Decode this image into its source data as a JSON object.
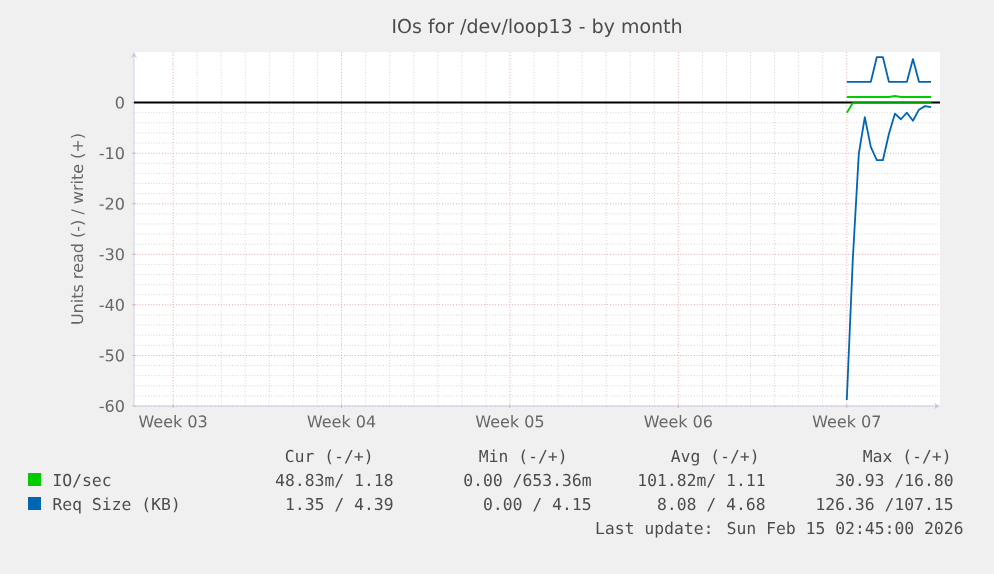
{
  "chart_data": {
    "type": "line",
    "title": "IOs for /dev/loop13 - by month",
    "ylabel": "Units read (-) / write (+)",
    "categories": [
      null,
      null,
      null,
      null,
      null,
      null,
      "Week 03",
      null,
      null,
      null,
      null,
      null,
      null,
      null,
      null,
      null,
      null,
      null,
      null,
      null,
      null,
      null,
      null,
      null,
      null,
      null,
      null,
      null,
      null,
      null,
      null,
      null,
      null,
      null,
      "Week 04",
      null,
      null,
      null,
      null,
      null,
      null,
      null,
      null,
      null,
      null,
      null,
      null,
      null,
      null,
      null,
      null,
      null,
      null,
      null,
      null,
      null,
      null,
      null,
      null,
      null,
      null,
      null,
      "Week 05",
      null,
      null,
      null,
      null,
      null,
      null,
      null,
      null,
      null,
      null,
      null,
      null,
      null,
      null,
      null,
      null,
      null,
      null,
      null,
      null,
      null,
      null,
      null,
      null,
      null,
      null,
      null,
      "Week 06",
      null,
      null,
      null,
      null,
      null,
      null,
      null,
      null,
      null,
      null,
      null,
      null,
      null,
      null,
      null,
      null,
      null,
      null,
      null,
      null,
      null,
      null,
      null,
      null,
      null,
      null,
      null,
      "Week 07",
      null,
      null,
      null,
      null,
      null,
      null,
      null,
      null,
      null,
      null,
      null,
      null,
      null,
      null,
      null
    ],
    "ylim": [
      -60,
      10
    ],
    "yticks": [
      -60,
      -50,
      -40,
      -30,
      -20,
      -10,
      0
    ],
    "grid": true,
    "legend": "bottom",
    "ref_lines": [
      {
        "axis": "y",
        "value": 0,
        "color": "#000000"
      }
    ],
    "series": [
      {
        "name": "IO/sec",
        "color": "#00cc00",
        "values": [
          null,
          null,
          null,
          null,
          null,
          null,
          null,
          null,
          null,
          null,
          null,
          null,
          null,
          null,
          null,
          null,
          null,
          null,
          null,
          null,
          null,
          null,
          null,
          null,
          null,
          null,
          null,
          null,
          null,
          null,
          null,
          null,
          null,
          null,
          null,
          null,
          null,
          null,
          null,
          null,
          null,
          null,
          null,
          null,
          null,
          null,
          null,
          null,
          null,
          null,
          null,
          null,
          null,
          null,
          null,
          null,
          null,
          null,
          null,
          null,
          null,
          null,
          null,
          null,
          null,
          null,
          null,
          null,
          null,
          null,
          null,
          null,
          null,
          null,
          null,
          null,
          null,
          null,
          null,
          null,
          null,
          null,
          null,
          null,
          null,
          null,
          null,
          null,
          null,
          null,
          null,
          null,
          null,
          null,
          null,
          null,
          null,
          null,
          null,
          null,
          null,
          null,
          null,
          null,
          null,
          null,
          null,
          null,
          null,
          null,
          null,
          null,
          null,
          null,
          null,
          null,
          null,
          null,
          1.1,
          1.1,
          1.1,
          1.1,
          1.1,
          1.1,
          1.1,
          1.1,
          1.3,
          1.1,
          1.1,
          1.1,
          1.1,
          1.1,
          1.1,
          null
        ]
      },
      {
        "color": "#00cc00",
        "values": [
          null,
          null,
          null,
          null,
          null,
          null,
          null,
          null,
          null,
          null,
          null,
          null,
          null,
          null,
          null,
          null,
          null,
          null,
          null,
          null,
          null,
          null,
          null,
          null,
          null,
          null,
          null,
          null,
          null,
          null,
          null,
          null,
          null,
          null,
          null,
          null,
          null,
          null,
          null,
          null,
          null,
          null,
          null,
          null,
          null,
          null,
          null,
          null,
          null,
          null,
          null,
          null,
          null,
          null,
          null,
          null,
          null,
          null,
          null,
          null,
          null,
          null,
          null,
          null,
          null,
          null,
          null,
          null,
          null,
          null,
          null,
          null,
          null,
          null,
          null,
          null,
          null,
          null,
          null,
          null,
          null,
          null,
          null,
          null,
          null,
          null,
          null,
          null,
          null,
          null,
          null,
          null,
          null,
          null,
          null,
          null,
          null,
          null,
          null,
          null,
          null,
          null,
          null,
          null,
          null,
          null,
          null,
          null,
          null,
          null,
          null,
          null,
          null,
          null,
          null,
          null,
          null,
          null,
          -2.0,
          -0.1,
          -0.1,
          -0.1,
          -0.1,
          -0.1,
          -0.1,
          -0.1,
          -0.1,
          -0.1,
          -0.1,
          -0.1,
          -0.1,
          -0.1,
          -0.1,
          null
        ]
      },
      {
        "name": "Req Size (KB)",
        "color": "#0066b3",
        "values": [
          null,
          null,
          null,
          null,
          null,
          null,
          null,
          null,
          null,
          null,
          null,
          null,
          null,
          null,
          null,
          null,
          null,
          null,
          null,
          null,
          null,
          null,
          null,
          null,
          null,
          null,
          null,
          null,
          null,
          null,
          null,
          null,
          null,
          null,
          null,
          null,
          null,
          null,
          null,
          null,
          null,
          null,
          null,
          null,
          null,
          null,
          null,
          null,
          null,
          null,
          null,
          null,
          null,
          null,
          null,
          null,
          null,
          null,
          null,
          null,
          null,
          null,
          null,
          null,
          null,
          null,
          null,
          null,
          null,
          null,
          null,
          null,
          null,
          null,
          null,
          null,
          null,
          null,
          null,
          null,
          null,
          null,
          null,
          null,
          null,
          null,
          null,
          null,
          null,
          null,
          null,
          null,
          null,
          null,
          null,
          null,
          null,
          null,
          null,
          null,
          null,
          null,
          null,
          null,
          null,
          null,
          null,
          null,
          null,
          null,
          null,
          null,
          null,
          null,
          null,
          null,
          null,
          null,
          4.1,
          4.1,
          4.1,
          4.1,
          4.1,
          9.0,
          9.0,
          4.1,
          4.1,
          4.1,
          4.1,
          8.6,
          4.1,
          4.1,
          4.1,
          null
        ]
      },
      {
        "color": "#0066b3",
        "values": [
          null,
          null,
          null,
          null,
          null,
          null,
          null,
          null,
          null,
          null,
          null,
          null,
          null,
          null,
          null,
          null,
          null,
          null,
          null,
          null,
          null,
          null,
          null,
          null,
          null,
          null,
          null,
          null,
          null,
          null,
          null,
          null,
          null,
          null,
          null,
          null,
          null,
          null,
          null,
          null,
          null,
          null,
          null,
          null,
          null,
          null,
          null,
          null,
          null,
          null,
          null,
          null,
          null,
          null,
          null,
          null,
          null,
          null,
          null,
          null,
          null,
          null,
          null,
          null,
          null,
          null,
          null,
          null,
          null,
          null,
          null,
          null,
          null,
          null,
          null,
          null,
          null,
          null,
          null,
          null,
          null,
          null,
          null,
          null,
          null,
          null,
          null,
          null,
          null,
          null,
          null,
          null,
          null,
          null,
          null,
          null,
          null,
          null,
          null,
          null,
          null,
          null,
          null,
          null,
          null,
          null,
          null,
          null,
          null,
          null,
          null,
          null,
          null,
          null,
          null,
          null,
          null,
          null,
          -58.8,
          -31.0,
          -10.1,
          -2.9,
          -8.8,
          -11.4,
          -11.4,
          -6.2,
          -2.2,
          -3.3,
          -2.0,
          -3.6,
          -1.4,
          -0.7,
          -0.9,
          null
        ]
      }
    ],
    "annotations": [
      "Cur (-/+)",
      "Min (-/+)",
      "Avg (-/+)",
      "Max (-/+)",
      "48.83m/ 1.18",
      "0.00 /653.36m",
      "101.82m/ 1.11",
      "30.93 /16.80",
      "1.35 / 4.39",
      "0.00 / 4.15",
      "8.08 / 4.68",
      "126.36 /107.15",
      "Last update: Sun Feb 15 02:45:00 2026"
    ]
  }
}
